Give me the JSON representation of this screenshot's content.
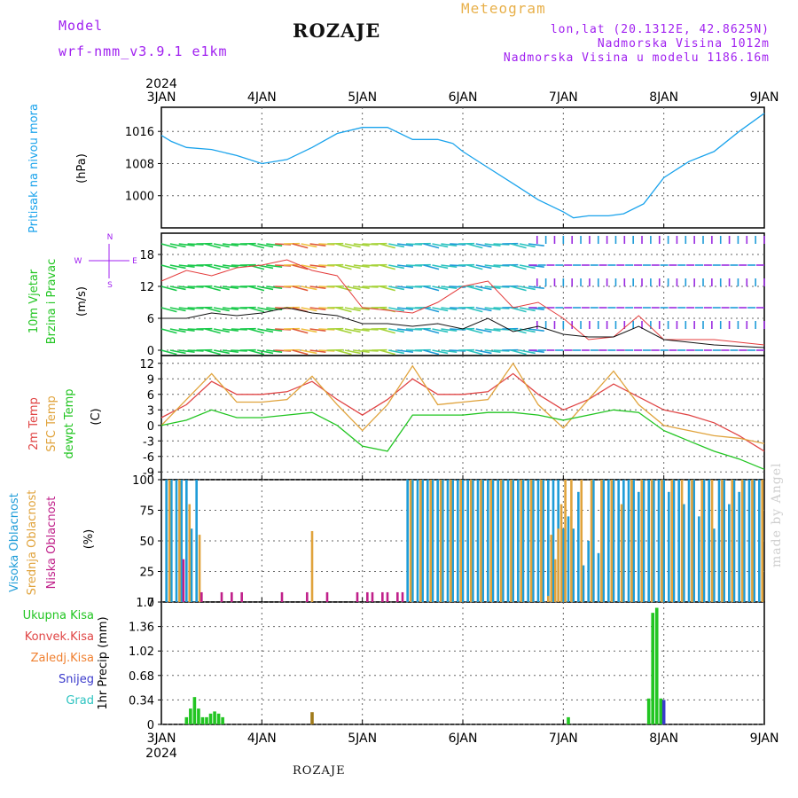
{
  "header": {
    "model_label": "Model",
    "model_name": "wrf-nmm_v3.9.1 e1km",
    "location": "ROZAJE",
    "meteogram_label": "Meteogram",
    "lonlat": "lon,lat (20.1312E, 42.8625N)",
    "altitude": "Nadmorska Visina 1012m",
    "model_altitude": "Nadmorska Visina u modelu 1186.16m"
  },
  "footer": {
    "location": "ROZAJE",
    "signature": "made by Angel"
  },
  "colors": {
    "pressure": "#1aa3ec",
    "wind_speed": "#111111",
    "wind_gust": "#e43b3b",
    "temp2m": "#e04545",
    "sfc_temp": "#e0a33c",
    "dewpt": "#22c522",
    "high_cloud": "#1e9cd8",
    "mid_cloud": "#e0a33c",
    "low_cloud": "#c0208a",
    "total_precip": "#22c522",
    "snow": "#3a3acb",
    "freezing": "#a07a1a"
  },
  "chart_data": [
    {
      "type": "line",
      "panel": "pressure",
      "ylabel": [
        "Pritisak na nivou mora",
        "(hPa)"
      ],
      "yticks": [
        1000,
        1008,
        1016
      ],
      "ylim": [
        992,
        1022
      ],
      "grid": true,
      "x_top_labels": [
        "3JAN",
        "4JAN",
        "5JAN",
        "6JAN",
        "7JAN",
        "8JAN",
        "9JAN"
      ],
      "x_top_year": "2024",
      "series": [
        {
          "x": [
            0,
            0.1,
            0.25,
            0.5,
            0.75,
            1.0,
            1.25,
            1.5,
            1.75,
            2.0,
            2.25,
            2.5,
            2.75,
            2.9,
            3.0,
            3.25,
            3.5,
            3.75,
            4.0,
            4.1,
            4.25,
            4.45,
            4.6,
            4.8,
            5.0,
            5.25,
            5.5,
            5.75,
            6.0
          ],
          "values": [
            1015,
            1013.5,
            1012,
            1011.5,
            1010,
            1008,
            1009,
            1012,
            1015.5,
            1017,
            1017,
            1014,
            1014,
            1013,
            1011,
            1007,
            1003,
            999,
            996,
            994.5,
            995,
            995,
            995.5,
            998,
            1004.5,
            1008.5,
            1011,
            1016,
            1020.5
          ]
        }
      ]
    },
    {
      "type": "line",
      "panel": "wind",
      "ylabel": [
        "10m Vjetar",
        "Brzina i Pravac",
        "(m/s)"
      ],
      "direction_key": [
        "N",
        "E",
        "S",
        "W"
      ],
      "yticks": [
        0,
        6,
        12,
        18
      ],
      "ylim": [
        -1,
        22
      ],
      "grid": true,
      "series": [
        {
          "name": "speed",
          "x": [
            0,
            0.25,
            0.5,
            0.75,
            1.0,
            1.25,
            1.5,
            1.75,
            2.0,
            2.25,
            2.5,
            2.75,
            3.0,
            3.25,
            3.5,
            3.75,
            4.0,
            4.25,
            4.5,
            4.75,
            5.0,
            5.5,
            6.0
          ],
          "values": [
            6,
            6,
            7,
            6.5,
            7,
            8,
            7,
            6.5,
            5,
            5,
            4.5,
            5,
            4,
            6,
            3.5,
            4.5,
            3,
            2.5,
            2.5,
            4.5,
            2,
            1,
            0.5
          ]
        },
        {
          "name": "gust",
          "x": [
            0,
            0.25,
            0.5,
            0.75,
            1.0,
            1.25,
            1.5,
            1.75,
            2.0,
            2.25,
            2.5,
            2.75,
            3.0,
            3.25,
            3.5,
            3.75,
            4.0,
            4.25,
            4.5,
            4.75,
            5.0,
            5.5,
            6.0
          ],
          "values": [
            13,
            15,
            14,
            15.5,
            16,
            17,
            15,
            14,
            8,
            7.5,
            7,
            9,
            12,
            13,
            8,
            9,
            6,
            2,
            2.5,
            6.5,
            2,
            2,
            1
          ]
        }
      ]
    },
    {
      "type": "line",
      "panel": "temperature",
      "ylabel": [
        "2m Temp",
        "SFC Temp",
        "dewpt Temp",
        "(C)"
      ],
      "yticks": [
        -9,
        -6,
        -3,
        0,
        3,
        6,
        9,
        12
      ],
      "ylim": [
        -10.5,
        13.5
      ],
      "grid": true,
      "series": [
        {
          "name": "2m Temp",
          "x": [
            0,
            0.25,
            0.5,
            0.75,
            1.0,
            1.25,
            1.5,
            1.75,
            2.0,
            2.25,
            2.5,
            2.75,
            3.0,
            3.25,
            3.5,
            3.75,
            4.0,
            4.25,
            4.5,
            4.75,
            5.0,
            5.25,
            5.5,
            5.75,
            6.0
          ],
          "values": [
            1.5,
            4,
            8.5,
            6,
            6,
            6.5,
            8.5,
            5,
            2,
            5,
            9,
            6,
            6,
            6.5,
            10,
            6,
            3,
            5,
            8,
            5.5,
            3,
            2,
            0.5,
            -2,
            -5
          ]
        },
        {
          "name": "SFC Temp",
          "x": [
            0,
            0.25,
            0.5,
            0.75,
            1.0,
            1.25,
            1.5,
            1.75,
            2.0,
            2.25,
            2.5,
            2.75,
            3.0,
            3.25,
            3.5,
            3.75,
            4.0,
            4.25,
            4.5,
            4.75,
            5.0,
            5.25,
            5.5,
            5.75,
            6.0
          ],
          "values": [
            0,
            5,
            10,
            4.5,
            4.5,
            5,
            9.5,
            4,
            -1,
            4,
            11.5,
            4,
            4.5,
            5,
            12,
            4,
            -0.5,
            5,
            10.5,
            4,
            0,
            -1,
            -2,
            -2.5,
            -3.5
          ]
        },
        {
          "name": "dewpt Temp",
          "x": [
            0,
            0.25,
            0.5,
            0.75,
            1.0,
            1.25,
            1.5,
            1.75,
            2.0,
            2.25,
            2.5,
            2.75,
            3.0,
            3.25,
            3.5,
            3.75,
            4.0,
            4.25,
            4.5,
            4.75,
            5.0,
            5.25,
            5.5,
            5.75,
            6.0
          ],
          "values": [
            0,
            1,
            3,
            1.5,
            1.5,
            2,
            2.5,
            0,
            -4,
            -5,
            2,
            2,
            2,
            2.5,
            2.5,
            2,
            1,
            2,
            3,
            2.5,
            -1,
            -3,
            -5,
            -6.5,
            -8.5
          ]
        }
      ]
    },
    {
      "type": "bar",
      "panel": "clouds",
      "ylabel": [
        "Visoka Oblacnost",
        "Srednja Oblacnost",
        "Niska Oblacnost",
        "(%)"
      ],
      "yticks": [
        0,
        25,
        50,
        75,
        100
      ],
      "ylim": [
        0,
        100
      ],
      "grid": true,
      "series": [
        {
          "name": "Visoka Oblacnost",
          "x": [
            0.05,
            0.1,
            0.15,
            0.2,
            0.25,
            0.3,
            0.35,
            2.45,
            2.5,
            2.55,
            2.6,
            2.65,
            2.7,
            2.75,
            2.8,
            2.85,
            2.9,
            2.95,
            3.0,
            3.05,
            3.1,
            3.15,
            3.2,
            3.25,
            3.3,
            3.35,
            3.4,
            3.45,
            3.5,
            3.55,
            3.6,
            3.65,
            3.7,
            3.75,
            3.8,
            3.85,
            3.9,
            3.95,
            4.0,
            4.05,
            4.1,
            4.15,
            4.2,
            4.25,
            4.3,
            4.35,
            4.4,
            4.45,
            4.5,
            4.55,
            4.6,
            4.65,
            4.7,
            4.75,
            4.8,
            4.85,
            4.9,
            4.95,
            5.0,
            5.05,
            5.1,
            5.15,
            5.2,
            5.25,
            5.3,
            5.35,
            5.4,
            5.45,
            5.5,
            5.55,
            5.6,
            5.65,
            5.7,
            5.75,
            5.8,
            5.85,
            5.9,
            5.95
          ],
          "values": [
            100,
            100,
            100,
            100,
            100,
            60,
            100,
            100,
            100,
            100,
            100,
            100,
            100,
            100,
            100,
            100,
            100,
            100,
            100,
            100,
            100,
            100,
            100,
            100,
            100,
            100,
            100,
            100,
            100,
            100,
            100,
            100,
            100,
            100,
            100,
            100,
            100,
            100,
            60,
            70,
            60,
            90,
            30,
            50,
            100,
            40,
            100,
            100,
            100,
            100,
            100,
            100,
            100,
            90,
            100,
            100,
            100,
            100,
            100,
            90,
            100,
            100,
            80,
            100,
            100,
            70,
            100,
            100,
            60,
            100,
            100,
            80,
            100,
            90,
            100,
            100,
            100,
            100
          ]
        },
        {
          "name": "Srednja Oblacnost",
          "x": [
            0.08,
            0.18,
            0.28,
            0.38,
            1.5,
            2.48,
            2.58,
            2.68,
            2.78,
            2.88,
            2.98,
            3.08,
            3.18,
            3.28,
            3.38,
            3.48,
            3.58,
            3.68,
            3.78,
            3.85,
            3.88,
            3.92,
            3.95,
            3.98,
            4.02,
            4.08,
            4.18,
            4.28,
            4.38,
            4.48,
            4.58,
            4.68,
            4.78,
            4.88,
            4.98,
            5.08,
            5.18,
            5.28,
            5.38,
            5.48,
            5.58,
            5.68,
            5.78,
            5.88,
            5.98
          ],
          "values": [
            100,
            100,
            80,
            55,
            58,
            100,
            100,
            100,
            100,
            100,
            100,
            100,
            100,
            100,
            100,
            100,
            100,
            100,
            100,
            5,
            55,
            35,
            60,
            80,
            100,
            100,
            100,
            100,
            100,
            100,
            80,
            100,
            100,
            100,
            100,
            100,
            100,
            100,
            100,
            100,
            100,
            100,
            100,
            100,
            100
          ]
        },
        {
          "name": "Niska Oblacnost",
          "x": [
            0.22,
            0.4,
            0.6,
            0.7,
            0.8,
            1.2,
            1.45,
            1.65,
            1.95,
            2.05,
            2.1,
            2.2,
            2.25,
            2.35,
            2.4
          ],
          "values": [
            35,
            8,
            8,
            8,
            8,
            8,
            8,
            8,
            8,
            8,
            8,
            8,
            8,
            8,
            8
          ]
        }
      ]
    },
    {
      "type": "bar",
      "panel": "precipitation",
      "ylabel": [
        "1hr Precip (mm)"
      ],
      "legend": [
        "Ukupna Kisa",
        "Konvek.Kisa",
        "Zaledj.Kisa",
        "Snijeg",
        "Grad"
      ],
      "yticks": [
        0,
        0.34,
        0.68,
        1.02,
        1.36,
        1.7
      ],
      "ylim": [
        0,
        1.7
      ],
      "grid": true,
      "x_bottom_labels": [
        "3JAN",
        "4JAN",
        "5JAN",
        "6JAN",
        "7JAN",
        "8JAN",
        "9JAN"
      ],
      "x_bottom_year": "2024",
      "series": [
        {
          "name": "Ukupna Kisa",
          "x": [
            0.25,
            0.29,
            0.33,
            0.37,
            0.41,
            0.45,
            0.49,
            0.53,
            0.57,
            0.61,
            4.05,
            4.85,
            4.89,
            4.93,
            4.97
          ],
          "values": [
            0.1,
            0.22,
            0.38,
            0.22,
            0.1,
            0.1,
            0.15,
            0.18,
            0.15,
            0.1,
            0.1,
            0.36,
            1.55,
            1.62,
            0.36
          ]
        },
        {
          "name": "Zaledj.Kisa",
          "x": [
            1.5
          ],
          "values": [
            0.17
          ]
        },
        {
          "name": "Snijeg",
          "x": [
            5.0
          ],
          "values": [
            0.34
          ]
        }
      ]
    }
  ]
}
